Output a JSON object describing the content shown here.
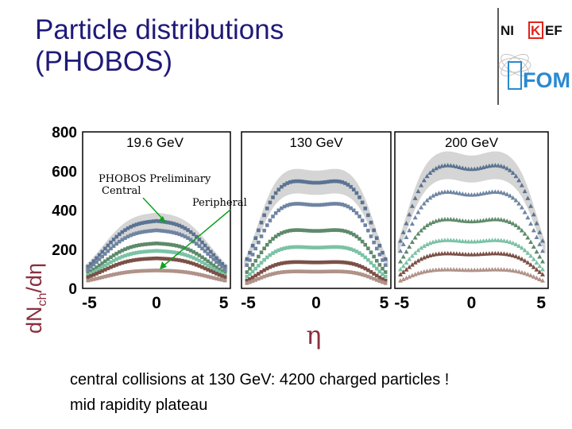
{
  "slide": {
    "title_lines": [
      "Particle distributions",
      "(PHOBOS)"
    ],
    "bullets": [
      "central collisions at 130 GeV: 4200 charged particles !",
      "mid rapidity plateau"
    ]
  },
  "logo": {
    "top_text_left": "NI",
    "top_text_mid": "K",
    "top_text_right": "EF",
    "bottom_text": "FOM",
    "brand_red": "#e2231a",
    "brand_blue": "#2a8ad0"
  },
  "chart_data": {
    "type": "scatter",
    "ylabel_main": "dN",
    "ylabel_sub": "ch",
    "ylabel_tail": "/dη",
    "xlabel": "η",
    "ylim": [
      0,
      800
    ],
    "y_ticks": [
      "0",
      "200",
      "400",
      "600",
      "800"
    ],
    "xlim": [
      -5.5,
      5.5
    ],
    "x_ticks": [
      "-5",
      "0",
      "5"
    ],
    "grid": false,
    "annotations": {
      "preliminary": "PHOBOS Preliminary",
      "central": "Central",
      "peripheral": "Peripheral"
    },
    "series_colors": [
      "#5b7393",
      "#6f85a2",
      "#5e8a6b",
      "#7bc2a6",
      "#7c5046",
      "#b09288"
    ],
    "panels": [
      {
        "label": "19.6 GeV",
        "marker": "square",
        "edge": 4.0,
        "width": 1.1,
        "dip": 0.02,
        "baseline": 20,
        "band": true,
        "centrality_peaks": [
          360,
          310,
          240,
          200,
          160,
          95
        ]
      },
      {
        "label": "130 GeV",
        "marker": "square",
        "edge": 4.3,
        "width": 0.75,
        "dip": 0.05,
        "baseline": 5,
        "band": true,
        "centrality_peaks": [
          570,
          450,
          310,
          220,
          140,
          90
        ]
      },
      {
        "label": "200 GeV",
        "marker": "triangle",
        "edge": 4.7,
        "width": 0.75,
        "dip": 0.06,
        "baseline": 5,
        "band": true,
        "centrality_peaks": [
          650,
          510,
          365,
          255,
          185,
          100
        ]
      }
    ]
  }
}
